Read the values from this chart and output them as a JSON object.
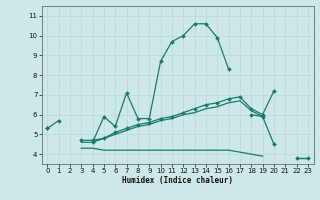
{
  "background_color": "#cde8e8",
  "grid_color": "#b8d8d8",
  "line_color": "#1a7a6a",
  "xlabel": "Humidex (Indice chaleur)",
  "xlim": [
    -0.5,
    23.5
  ],
  "ylim": [
    3.5,
    11.5
  ],
  "yticks": [
    4,
    5,
    6,
    7,
    8,
    9,
    10,
    11
  ],
  "xticks": [
    0,
    1,
    2,
    3,
    4,
    5,
    6,
    7,
    8,
    9,
    10,
    11,
    12,
    13,
    14,
    15,
    16,
    17,
    18,
    19,
    20,
    21,
    22,
    23
  ],
  "series": [
    {
      "x": [
        0,
        1,
        4,
        5,
        6,
        7,
        8,
        9,
        10,
        11,
        12,
        13,
        14,
        15,
        16,
        18,
        19,
        20,
        22,
        23
      ],
      "y": [
        5.3,
        5.7,
        4.6,
        5.9,
        5.4,
        7.1,
        5.8,
        5.8,
        8.7,
        9.7,
        10.0,
        10.6,
        10.6,
        9.9,
        8.3,
        6.0,
        5.9,
        4.5,
        3.8,
        3.8
      ],
      "breaks": [
        1,
        4,
        16,
        18,
        20,
        22
      ],
      "marker": true
    },
    {
      "x": [
        0,
        3,
        4,
        5,
        6,
        7,
        8,
        9,
        10,
        11,
        12,
        13,
        14,
        15,
        16,
        17,
        18,
        19,
        20
      ],
      "y": [
        5.3,
        4.7,
        4.7,
        4.8,
        5.1,
        5.3,
        5.5,
        5.6,
        5.8,
        5.9,
        6.1,
        6.3,
        6.5,
        6.6,
        6.8,
        6.9,
        6.3,
        6.0,
        7.2
      ],
      "breaks": [
        0,
        3
      ],
      "marker": true
    },
    {
      "x": [
        0,
        3,
        4,
        5,
        6,
        7,
        8,
        9,
        10,
        11,
        12,
        13,
        14,
        15,
        16,
        17,
        18,
        19
      ],
      "y": [
        5.3,
        4.6,
        4.6,
        4.8,
        5.0,
        5.2,
        5.4,
        5.5,
        5.7,
        5.8,
        6.0,
        6.1,
        6.3,
        6.4,
        6.6,
        6.7,
        6.2,
        5.9
      ],
      "breaks": [
        0,
        3
      ],
      "marker": false
    },
    {
      "x": [
        0,
        3,
        4,
        5,
        6,
        7,
        8,
        9,
        10,
        11,
        12,
        13,
        14,
        15,
        16,
        17,
        18,
        19,
        22,
        23
      ],
      "y": [
        5.3,
        4.3,
        4.3,
        4.2,
        4.2,
        4.2,
        4.2,
        4.2,
        4.2,
        4.2,
        4.2,
        4.2,
        4.2,
        4.2,
        4.2,
        4.1,
        4.0,
        3.9,
        3.8,
        3.8
      ],
      "breaks": [
        0,
        3,
        19,
        22
      ],
      "marker": false
    }
  ]
}
